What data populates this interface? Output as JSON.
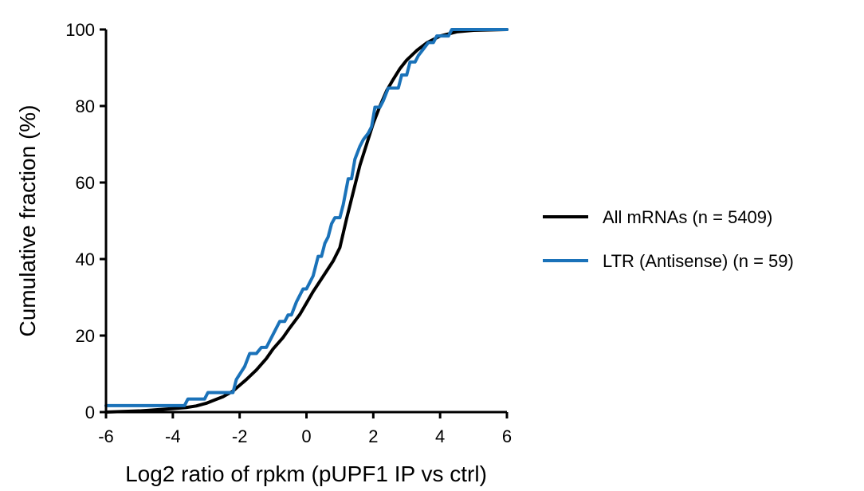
{
  "chart_data": {
    "type": "line",
    "title": "",
    "xlabel": "Log2 ratio of rpkm (pUPF1 IP vs ctrl)",
    "ylabel": "Cumulative fraction (%)",
    "xlim": [
      -6,
      6
    ],
    "ylim": [
      0,
      100
    ],
    "xticks": [
      -6,
      -4,
      -2,
      0,
      2,
      4,
      6
    ],
    "yticks": [
      0,
      20,
      40,
      60,
      80,
      100
    ],
    "xtick_labels": [
      "-6",
      "-4",
      "-2",
      "0",
      "2",
      "4",
      "6"
    ],
    "ytick_labels": [
      "0",
      "20",
      "40",
      "60",
      "80",
      "100"
    ],
    "grid": false,
    "legend_position": "right",
    "series": [
      {
        "name": "All mRNAs (n = 5409)",
        "color": "#000000",
        "points": [
          [
            -6,
            0
          ],
          [
            -5,
            0.3
          ],
          [
            -4.5,
            0.6
          ],
          [
            -4,
            0.9
          ],
          [
            -3.6,
            1.2
          ],
          [
            -3.3,
            1.6
          ],
          [
            -3.0,
            2.3
          ],
          [
            -2.8,
            3.0
          ],
          [
            -2.5,
            4.0
          ],
          [
            -2.2,
            5.5
          ],
          [
            -2.0,
            7.0
          ],
          [
            -1.8,
            8.5
          ],
          [
            -1.5,
            11.0
          ],
          [
            -1.2,
            14.0
          ],
          [
            -1.0,
            16.5
          ],
          [
            -0.7,
            19.5
          ],
          [
            -0.5,
            22.0
          ],
          [
            -0.2,
            25.5
          ],
          [
            0.0,
            28.5
          ],
          [
            0.2,
            31.5
          ],
          [
            0.5,
            35.5
          ],
          [
            0.8,
            39.5
          ],
          [
            1.0,
            43.0
          ],
          [
            1.2,
            50.5
          ],
          [
            1.4,
            57.5
          ],
          [
            1.6,
            64.5
          ],
          [
            1.8,
            70.0
          ],
          [
            2.0,
            75.5
          ],
          [
            2.2,
            80.0
          ],
          [
            2.4,
            84.0
          ],
          [
            2.6,
            87.0
          ],
          [
            2.8,
            89.8
          ],
          [
            3.0,
            92.0
          ],
          [
            3.3,
            94.5
          ],
          [
            3.6,
            96.5
          ],
          [
            4.0,
            98.3
          ],
          [
            4.5,
            99.4
          ],
          [
            5.0,
            99.8
          ],
          [
            6.0,
            100
          ]
        ]
      },
      {
        "name": "LTR (Antisense) (n = 59)",
        "color": "#1a72b9",
        "points": [
          [
            -6,
            1.7
          ],
          [
            -3.65,
            1.7
          ],
          [
            -3.55,
            3.4
          ],
          [
            -3.05,
            3.4
          ],
          [
            -2.95,
            5.1
          ],
          [
            -2.2,
            5.1
          ],
          [
            -2.1,
            8.5
          ],
          [
            -1.85,
            11.9
          ],
          [
            -1.7,
            15.3
          ],
          [
            -1.5,
            15.3
          ],
          [
            -1.35,
            16.9
          ],
          [
            -1.2,
            16.9
          ],
          [
            -1.0,
            20.3
          ],
          [
            -0.8,
            23.7
          ],
          [
            -0.65,
            23.7
          ],
          [
            -0.55,
            25.4
          ],
          [
            -0.45,
            25.4
          ],
          [
            -0.3,
            28.8
          ],
          [
            -0.1,
            32.2
          ],
          [
            0.0,
            32.2
          ],
          [
            0.1,
            33.9
          ],
          [
            0.2,
            35.6
          ],
          [
            0.35,
            40.7
          ],
          [
            0.45,
            40.7
          ],
          [
            0.55,
            44.1
          ],
          [
            0.65,
            45.8
          ],
          [
            0.75,
            49.2
          ],
          [
            0.85,
            50.8
          ],
          [
            1.0,
            50.8
          ],
          [
            1.1,
            54.2
          ],
          [
            1.25,
            61.0
          ],
          [
            1.35,
            61.0
          ],
          [
            1.45,
            66.1
          ],
          [
            1.6,
            69.5
          ],
          [
            1.7,
            71.2
          ],
          [
            1.85,
            72.9
          ],
          [
            1.95,
            74.6
          ],
          [
            2.05,
            79.7
          ],
          [
            2.2,
            79.7
          ],
          [
            2.3,
            81.4
          ],
          [
            2.45,
            84.7
          ],
          [
            2.75,
            84.7
          ],
          [
            2.85,
            88.1
          ],
          [
            3.0,
            88.1
          ],
          [
            3.1,
            91.5
          ],
          [
            3.25,
            91.5
          ],
          [
            3.35,
            93.2
          ],
          [
            3.5,
            94.9
          ],
          [
            3.65,
            96.6
          ],
          [
            3.8,
            96.6
          ],
          [
            3.9,
            98.3
          ],
          [
            4.25,
            98.3
          ],
          [
            4.35,
            100
          ],
          [
            6.0,
            100
          ]
        ]
      }
    ]
  }
}
